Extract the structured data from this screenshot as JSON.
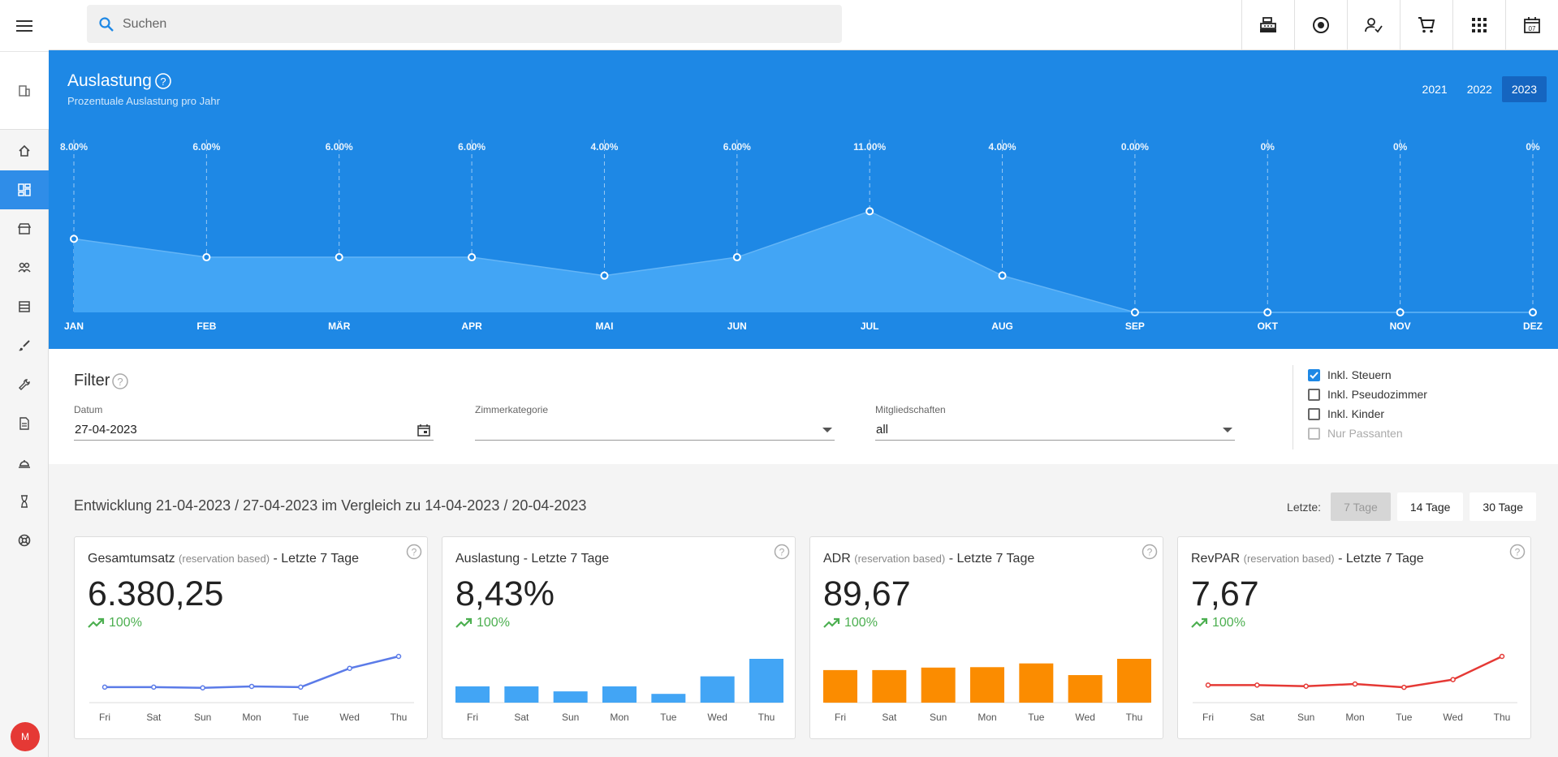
{
  "sidebar": {
    "avatar": "M"
  },
  "search": {
    "placeholder": "Suchen"
  },
  "hero": {
    "title": "Auslastung",
    "subtitle": "Prozentuale Auslastung pro Jahr",
    "years": [
      "2021",
      "2022",
      "2023"
    ],
    "active_year": "2023"
  },
  "chart_data": {
    "type": "area",
    "categories": [
      "JAN",
      "FEB",
      "MÄR",
      "APR",
      "MAI",
      "JUN",
      "JUL",
      "AUG",
      "SEP",
      "OKT",
      "NOV",
      "DEZ"
    ],
    "labels": [
      "8.00%",
      "6.00%",
      "6.00%",
      "6.00%",
      "4.00%",
      "6.00%",
      "11.00%",
      "4.00%",
      "0.00%",
      "0%",
      "0%",
      "0%"
    ],
    "values": [
      8,
      6,
      6,
      6,
      4,
      6,
      11,
      4,
      0,
      0,
      0,
      0
    ],
    "color": "#42a5f5"
  },
  "filter": {
    "title": "Filter",
    "date_label": "Datum",
    "date_value": "27-04-2023",
    "room_label": "Zimmerkategorie",
    "room_value": "",
    "membership_label": "Mitgliedschaften",
    "membership_value": "all",
    "checks": [
      {
        "label": "Inkl. Steuern",
        "checked": true,
        "disabled": false
      },
      {
        "label": "Inkl. Pseudozimmer",
        "checked": false,
        "disabled": false
      },
      {
        "label": "Inkl. Kinder",
        "checked": false,
        "disabled": false
      },
      {
        "label": "Nur Passanten",
        "checked": false,
        "disabled": true
      }
    ]
  },
  "development": {
    "title": "Entwicklung 21-04-2023 / 27-04-2023 im Vergleich zu 14-04-2023 / 20-04-2023",
    "range_label": "Letzte:",
    "ranges": [
      "7 Tage",
      "14 Tage",
      "30 Tage"
    ],
    "active_range": "7 Tage"
  },
  "cards": [
    {
      "name": "Gesamtumsatz",
      "sub": "(reservation based)",
      "period": "- Letzte 7 Tage",
      "value": "6.380,25",
      "trend": "100%",
      "chart": {
        "type": "line",
        "color": "#5b7be8",
        "categories": [
          "Fri",
          "Sat",
          "Sun",
          "Mon",
          "Tue",
          "Wed",
          "Thu"
        ],
        "values": [
          250,
          250,
          230,
          270,
          250,
          770,
          1100
        ]
      }
    },
    {
      "name": "Auslastung",
      "sub": "",
      "period": "- Letzte 7 Tage",
      "value": "8,43%",
      "trend": "100%",
      "chart": {
        "type": "bar",
        "color": "#42a5f5",
        "categories": [
          "Fri",
          "Sat",
          "Sun",
          "Mon",
          "Tue",
          "Wed",
          "Thu"
        ],
        "values": [
          6.5,
          6.5,
          4.5,
          6.5,
          3.5,
          10.5,
          17.5
        ]
      }
    },
    {
      "name": "ADR",
      "sub": "(reservation based)",
      "period": "- Letzte 7 Tage",
      "value": "89,67",
      "trend": "100%",
      "chart": {
        "type": "bar",
        "color": "#fb8c00",
        "categories": [
          "Fri",
          "Sat",
          "Sun",
          "Mon",
          "Tue",
          "Wed",
          "Thu"
        ],
        "values": [
          78,
          78,
          84,
          85,
          94,
          66,
          105
        ]
      }
    },
    {
      "name": "RevPAR",
      "sub": "(reservation based)",
      "period": "- Letzte 7 Tage",
      "value": "7,67",
      "trend": "100%",
      "chart": {
        "type": "line",
        "color": "#e53935",
        "categories": [
          "Fri",
          "Sat",
          "Sun",
          "Mon",
          "Tue",
          "Wed",
          "Thu"
        ],
        "values": [
          5,
          5,
          4.5,
          5.5,
          4,
          7.5,
          18
        ]
      }
    }
  ]
}
